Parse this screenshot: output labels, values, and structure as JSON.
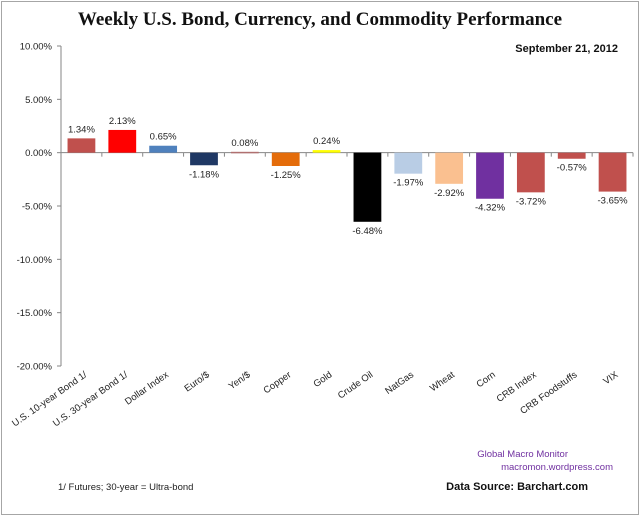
{
  "chart_data": {
    "type": "bar",
    "title": "Weekly U.S. Bond, Currency, and Commodity Performance",
    "subtitle": "September 21, 2012",
    "xlabel": "",
    "ylabel": "",
    "ylim": [
      -20,
      10
    ],
    "yticks": [
      10,
      5,
      0,
      -5,
      -10,
      -15,
      -20
    ],
    "ytick_labels": [
      "10.00%",
      "5.00%",
      "0.00%",
      "-5.00%",
      "-10.00%",
      "-15.00%",
      "-20.00%"
    ],
    "grid": false,
    "legend": "none",
    "categories": [
      "U.S. 10-year Bond 1/",
      "U.S. 30-year Bond 1/",
      "Dollar Index",
      "Euro/$",
      "Yen/$",
      "Copper",
      "Gold",
      "Crude Oil",
      "NatGas",
      "Wheat",
      "Corn",
      "CRB Index",
      "CRB Foodstuffs",
      "VIX"
    ],
    "values": [
      1.34,
      2.13,
      0.65,
      -1.18,
      0.08,
      -1.25,
      0.24,
      -6.48,
      -1.97,
      -2.92,
      -4.32,
      -3.72,
      -0.57,
      -3.65
    ],
    "data_labels": [
      "1.34%",
      "2.13%",
      "0.65%",
      "-1.18%",
      "0.08%",
      "-1.25%",
      "0.24%",
      "-6.48%",
      "-1.97%",
      "-2.92%",
      "-4.32%",
      "-3.72%",
      "-0.57%",
      "-3.65%"
    ],
    "colors": [
      "#c0504d",
      "#ff0000",
      "#4f81bd",
      "#1f3864",
      "#b07070",
      "#e46c0a",
      "#ffff00",
      "#000000",
      "#b9cde5",
      "#fac090",
      "#7030a0",
      "#c0504d",
      "#c0504d",
      "#c0504d"
    ]
  },
  "annotations": {
    "footnote": "1/ Futures; 30-year = Ultra-bond",
    "brand_name": "Global Macro Monitor",
    "brand_url": "macromon.wordpress.com",
    "source": "Data Source:  Barchart.com"
  }
}
